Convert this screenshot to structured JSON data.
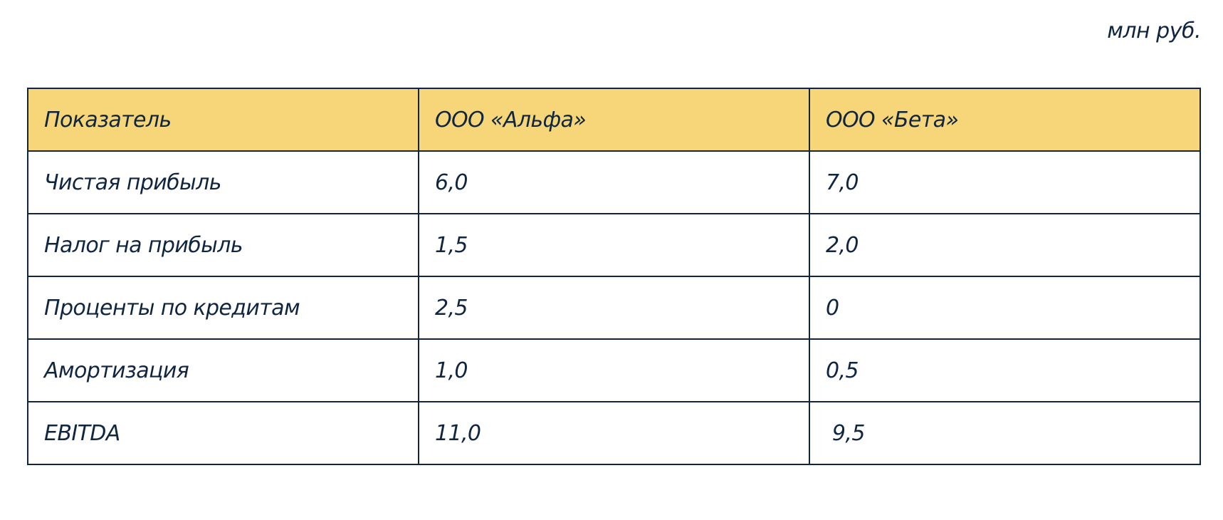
{
  "unit_label": "млн руб.",
  "table": {
    "headers": [
      "Показатель",
      "ООО «Альфа»",
      "ООО «Бета»"
    ],
    "rows": [
      [
        "Чистая прибыль",
        "6,0",
        "7,0"
      ],
      [
        "Налог на прибыль",
        "1,5",
        "2,0"
      ],
      [
        "Проценты по кредитам",
        "2,5",
        "0"
      ],
      [
        "Амортизация",
        "1,0",
        "0,5"
      ],
      [
        "EBITDA",
        "11,0",
        " 9,5"
      ]
    ]
  },
  "colors": {
    "header_bg": "#f7d67a",
    "text": "#0f2540",
    "border": "#0f2540"
  }
}
